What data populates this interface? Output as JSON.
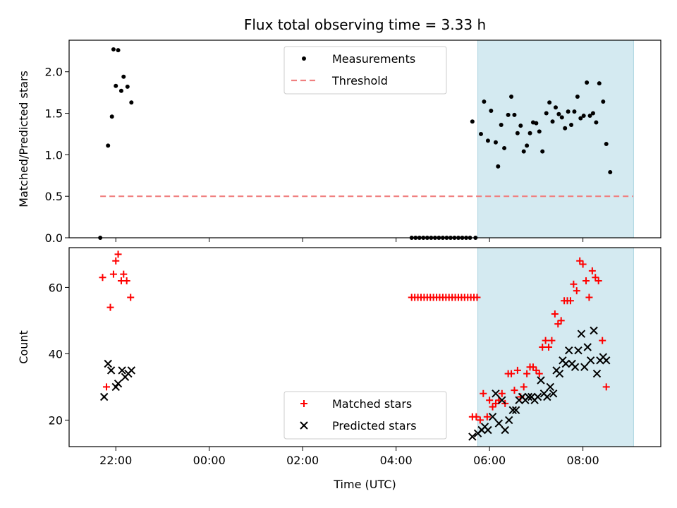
{
  "chart_data": [
    {
      "type": "scatter",
      "title": "Flux total observing time = 3.33 h",
      "ylabel": "Matched/Predicted stars",
      "xlabel": "",
      "ylim": [
        0,
        2.38
      ],
      "yticks": [
        0.0,
        0.5,
        1.0,
        1.5,
        2.0
      ],
      "ytick_labels": [
        "0.0",
        "0.5",
        "1.0",
        "1.5",
        "2.0"
      ],
      "shaded_range": [
        "05:45",
        "09:05"
      ],
      "shade_color": "#d4eaf1",
      "legend_position": "upper center",
      "series": [
        {
          "name": "Measurements",
          "marker": "dot",
          "color": "#000000",
          "points": [
            [
              "21:40",
              0.0
            ],
            [
              "21:50",
              1.11
            ],
            [
              "21:55",
              1.46
            ],
            [
              "22:00",
              1.83
            ],
            [
              "21:57",
              2.27
            ],
            [
              "22:03",
              2.26
            ],
            [
              "22:07",
              1.77
            ],
            [
              "22:10",
              1.94
            ],
            [
              "22:15",
              1.82
            ],
            [
              "22:20",
              1.63
            ],
            [
              "04:20",
              0.0
            ],
            [
              "04:25",
              0.0
            ],
            [
              "04:30",
              0.0
            ],
            [
              "04:35",
              0.0
            ],
            [
              "04:40",
              0.0
            ],
            [
              "04:45",
              0.0
            ],
            [
              "04:50",
              0.0
            ],
            [
              "04:55",
              0.0
            ],
            [
              "05:00",
              0.0
            ],
            [
              "05:05",
              0.0
            ],
            [
              "05:10",
              0.0
            ],
            [
              "05:15",
              0.0
            ],
            [
              "05:20",
              0.0
            ],
            [
              "05:25",
              0.0
            ],
            [
              "05:30",
              0.0
            ],
            [
              "05:35",
              0.0
            ],
            [
              "05:42",
              0.0
            ],
            [
              "05:38",
              1.4
            ],
            [
              "05:49",
              1.25
            ],
            [
              "05:53",
              1.64
            ],
            [
              "05:58",
              1.17
            ],
            [
              "06:02",
              1.53
            ],
            [
              "06:08",
              1.15
            ],
            [
              "06:11",
              0.86
            ],
            [
              "06:15",
              1.36
            ],
            [
              "06:19",
              1.08
            ],
            [
              "06:24",
              1.48
            ],
            [
              "06:28",
              1.7
            ],
            [
              "06:32",
              1.48
            ],
            [
              "06:36",
              1.26
            ],
            [
              "06:40",
              1.35
            ],
            [
              "06:44",
              1.04
            ],
            [
              "06:48",
              1.11
            ],
            [
              "06:52",
              1.26
            ],
            [
              "06:56",
              1.39
            ],
            [
              "07:00",
              1.38
            ],
            [
              "07:04",
              1.28
            ],
            [
              "07:08",
              1.04
            ],
            [
              "07:13",
              1.5
            ],
            [
              "07:17",
              1.63
            ],
            [
              "07:21",
              1.4
            ],
            [
              "07:25",
              1.57
            ],
            [
              "07:29",
              1.49
            ],
            [
              "07:33",
              1.45
            ],
            [
              "07:37",
              1.32
            ],
            [
              "07:41",
              1.52
            ],
            [
              "07:45",
              1.36
            ],
            [
              "07:49",
              1.52
            ],
            [
              "07:53",
              1.7
            ],
            [
              "07:57",
              1.44
            ],
            [
              "08:01",
              1.47
            ],
            [
              "08:05",
              1.87
            ],
            [
              "08:09",
              1.47
            ],
            [
              "08:13",
              1.5
            ],
            [
              "08:17",
              1.39
            ],
            [
              "08:21",
              1.86
            ],
            [
              "08:26",
              1.64
            ],
            [
              "08:30",
              1.13
            ],
            [
              "08:35",
              0.79
            ]
          ]
        },
        {
          "name": "Threshold",
          "marker": "dashed-line",
          "color": "#f08080",
          "points": [
            [
              "21:40",
              0.5
            ],
            [
              "09:00",
              0.5
            ]
          ]
        }
      ]
    },
    {
      "type": "scatter",
      "xlabel": "Time (UTC)",
      "ylabel": "Count",
      "ylim": [
        12,
        72
      ],
      "yticks": [
        20,
        40,
        60
      ],
      "ytick_labels": [
        "20",
        "40",
        "60"
      ],
      "xticks": [
        "22:00",
        "00:00",
        "02:00",
        "04:00",
        "06:00",
        "08:00"
      ],
      "shaded_range": [
        "05:45",
        "09:05"
      ],
      "shade_color": "#d4eaf1",
      "legend_position": "lower center",
      "series": [
        {
          "name": "Matched stars",
          "marker": "plus",
          "color": "#ff0000",
          "points": [
            [
              "21:43",
              63
            ],
            [
              "21:48",
              30
            ],
            [
              "21:53",
              54
            ],
            [
              "21:57",
              64
            ],
            [
              "22:00",
              68
            ],
            [
              "22:03",
              70
            ],
            [
              "22:07",
              62
            ],
            [
              "22:10",
              64
            ],
            [
              "22:14",
              62
            ],
            [
              "22:19",
              57
            ],
            [
              "04:20",
              57
            ],
            [
              "04:24",
              57
            ],
            [
              "04:28",
              57
            ],
            [
              "04:32",
              57
            ],
            [
              "04:36",
              57
            ],
            [
              "04:40",
              57
            ],
            [
              "04:44",
              57
            ],
            [
              "04:48",
              57
            ],
            [
              "04:52",
              57
            ],
            [
              "04:56",
              57
            ],
            [
              "05:00",
              57
            ],
            [
              "05:04",
              57
            ],
            [
              "05:08",
              57
            ],
            [
              "05:12",
              57
            ],
            [
              "05:16",
              57
            ],
            [
              "05:20",
              57
            ],
            [
              "05:24",
              57
            ],
            [
              "05:28",
              57
            ],
            [
              "05:32",
              57
            ],
            [
              "05:36",
              57
            ],
            [
              "05:40",
              57
            ],
            [
              "05:44",
              57
            ],
            [
              "05:38",
              21
            ],
            [
              "05:43",
              21
            ],
            [
              "05:48",
              20
            ],
            [
              "05:52",
              28
            ],
            [
              "05:57",
              21
            ],
            [
              "06:00",
              26
            ],
            [
              "06:04",
              24
            ],
            [
              "06:08",
              25
            ],
            [
              "06:12",
              26
            ],
            [
              "06:16",
              28
            ],
            [
              "06:20",
              25
            ],
            [
              "06:24",
              34
            ],
            [
              "06:28",
              34
            ],
            [
              "06:32",
              29
            ],
            [
              "06:36",
              35
            ],
            [
              "06:40",
              27
            ],
            [
              "06:44",
              30
            ],
            [
              "06:48",
              34
            ],
            [
              "06:52",
              36
            ],
            [
              "06:56",
              36
            ],
            [
              "07:00",
              35
            ],
            [
              "07:04",
              34
            ],
            [
              "07:08",
              42
            ],
            [
              "07:12",
              44
            ],
            [
              "07:16",
              42
            ],
            [
              "07:20",
              44
            ],
            [
              "07:24",
              52
            ],
            [
              "07:28",
              49
            ],
            [
              "07:32",
              50
            ],
            [
              "07:36",
              56
            ],
            [
              "07:40",
              56
            ],
            [
              "07:44",
              56
            ],
            [
              "07:48",
              61
            ],
            [
              "07:52",
              59
            ],
            [
              "07:56",
              68
            ],
            [
              "08:00",
              67
            ],
            [
              "08:04",
              62
            ],
            [
              "08:08",
              57
            ],
            [
              "08:12",
              65
            ],
            [
              "08:16",
              63
            ],
            [
              "08:20",
              62
            ],
            [
              "08:25",
              44
            ],
            [
              "08:30",
              30
            ]
          ]
        },
        {
          "name": "Predicted stars",
          "marker": "x",
          "color": "#000000",
          "points": [
            [
              "21:45",
              27
            ],
            [
              "21:50",
              37
            ],
            [
              "21:54",
              35
            ],
            [
              "22:00",
              30
            ],
            [
              "22:03",
              31
            ],
            [
              "22:08",
              35
            ],
            [
              "22:12",
              33
            ],
            [
              "22:16",
              34
            ],
            [
              "22:20",
              35
            ],
            [
              "05:38",
              15
            ],
            [
              "05:45",
              16
            ],
            [
              "05:50",
              17
            ],
            [
              "05:54",
              18
            ],
            [
              "05:58",
              17
            ],
            [
              "06:04",
              21
            ],
            [
              "06:08",
              28
            ],
            [
              "06:12",
              19
            ],
            [
              "06:16",
              26
            ],
            [
              "06:20",
              17
            ],
            [
              "06:25",
              20
            ],
            [
              "06:30",
              23
            ],
            [
              "06:34",
              23
            ],
            [
              "06:38",
              26
            ],
            [
              "06:42",
              27
            ],
            [
              "06:46",
              26
            ],
            [
              "06:50",
              27
            ],
            [
              "06:54",
              27
            ],
            [
              "06:58",
              26
            ],
            [
              "07:02",
              27
            ],
            [
              "07:06",
              32
            ],
            [
              "07:10",
              28
            ],
            [
              "07:14",
              27
            ],
            [
              "07:18",
              30
            ],
            [
              "07:22",
              28
            ],
            [
              "07:26",
              35
            ],
            [
              "07:30",
              34
            ],
            [
              "07:34",
              38
            ],
            [
              "07:38",
              37
            ],
            [
              "07:42",
              41
            ],
            [
              "07:46",
              37
            ],
            [
              "07:50",
              36
            ],
            [
              "07:54",
              41
            ],
            [
              "07:58",
              46
            ],
            [
              "08:02",
              36
            ],
            [
              "08:06",
              42
            ],
            [
              "08:10",
              38
            ],
            [
              "08:14",
              47
            ],
            [
              "08:18",
              34
            ],
            [
              "08:22",
              38
            ],
            [
              "08:26",
              39
            ],
            [
              "08:30",
              38
            ]
          ]
        }
      ]
    }
  ]
}
